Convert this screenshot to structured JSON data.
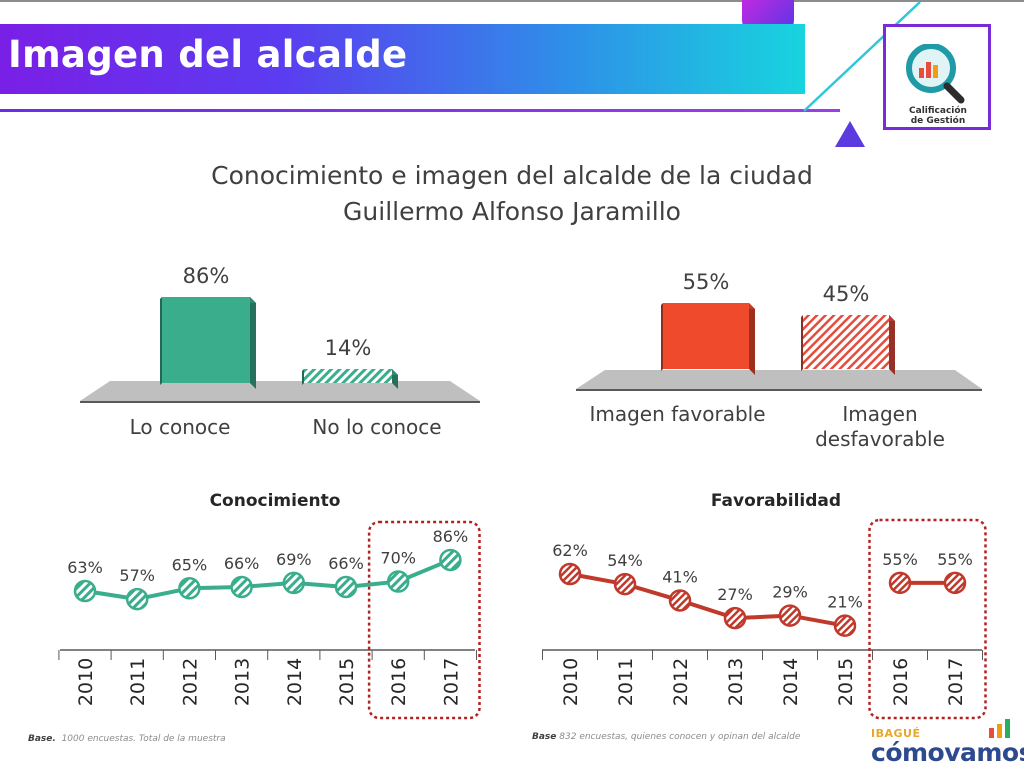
{
  "header": {
    "title": "Imagen del alcalde",
    "logo_text_line1": "Calificación",
    "logo_text_line2": "de Gestión"
  },
  "chart_title": {
    "line1": "Conocimiento e imagen del alcalde de la ciudad",
    "line2": "Guillermo Alfonso Jaramillo"
  },
  "chart_data": [
    {
      "type": "bar",
      "categories": [
        "Lo conoce",
        "No lo conoce"
      ],
      "values": [
        86,
        14
      ],
      "value_labels": [
        "86%",
        "14%"
      ],
      "ylim": [
        0,
        100
      ],
      "colors": [
        "#3aae8c",
        "#3aae8c"
      ],
      "patterns": [
        "solid",
        "hatched"
      ]
    },
    {
      "type": "bar",
      "categories": [
        "Imagen favorable",
        "Imagen desfavorable"
      ],
      "category_lines": [
        [
          "Imagen favorable"
        ],
        [
          "Imagen",
          "desfavorable"
        ]
      ],
      "values": [
        55,
        45
      ],
      "value_labels": [
        "55%",
        "45%"
      ],
      "ylim": [
        0,
        100
      ],
      "colors": [
        "#f04a2d",
        "#e64c3c"
      ],
      "patterns": [
        "solid",
        "hatched"
      ]
    },
    {
      "type": "line",
      "title": "Conocimiento",
      "x": [
        "2010",
        "2011",
        "2012",
        "2013",
        "2014",
        "2015",
        "2016",
        "2017"
      ],
      "values": [
        63,
        57,
        65,
        66,
        69,
        66,
        70,
        86
      ],
      "value_labels": [
        "63%",
        "57%",
        "65%",
        "66%",
        "69%",
        "66%",
        "70%",
        "86%"
      ],
      "highlight": [
        "2016",
        "2017"
      ],
      "color": "#3aae8c"
    },
    {
      "type": "line",
      "title": "Favorabilidad",
      "x": [
        "2010",
        "2011",
        "2012",
        "2013",
        "2014",
        "2015",
        "2016",
        "2017"
      ],
      "values": [
        62,
        54,
        41,
        27,
        29,
        21,
        55,
        55
      ],
      "value_labels": [
        "62%",
        "54%",
        "41%",
        "27%",
        "29%",
        "21%",
        "55%",
        "55%"
      ],
      "highlight": [
        "2016",
        "2017"
      ],
      "color": "#c0392b"
    }
  ],
  "footnotes": {
    "left_bold": "Base.",
    "left_text": "1000 encuestas. Total de la muestra",
    "right_bold": "Base",
    "right_text": "832  encuestas, quienes conocen y opinan del alcalde"
  },
  "brand": {
    "city": "IBAGUÉ",
    "name": "cómovamos"
  }
}
